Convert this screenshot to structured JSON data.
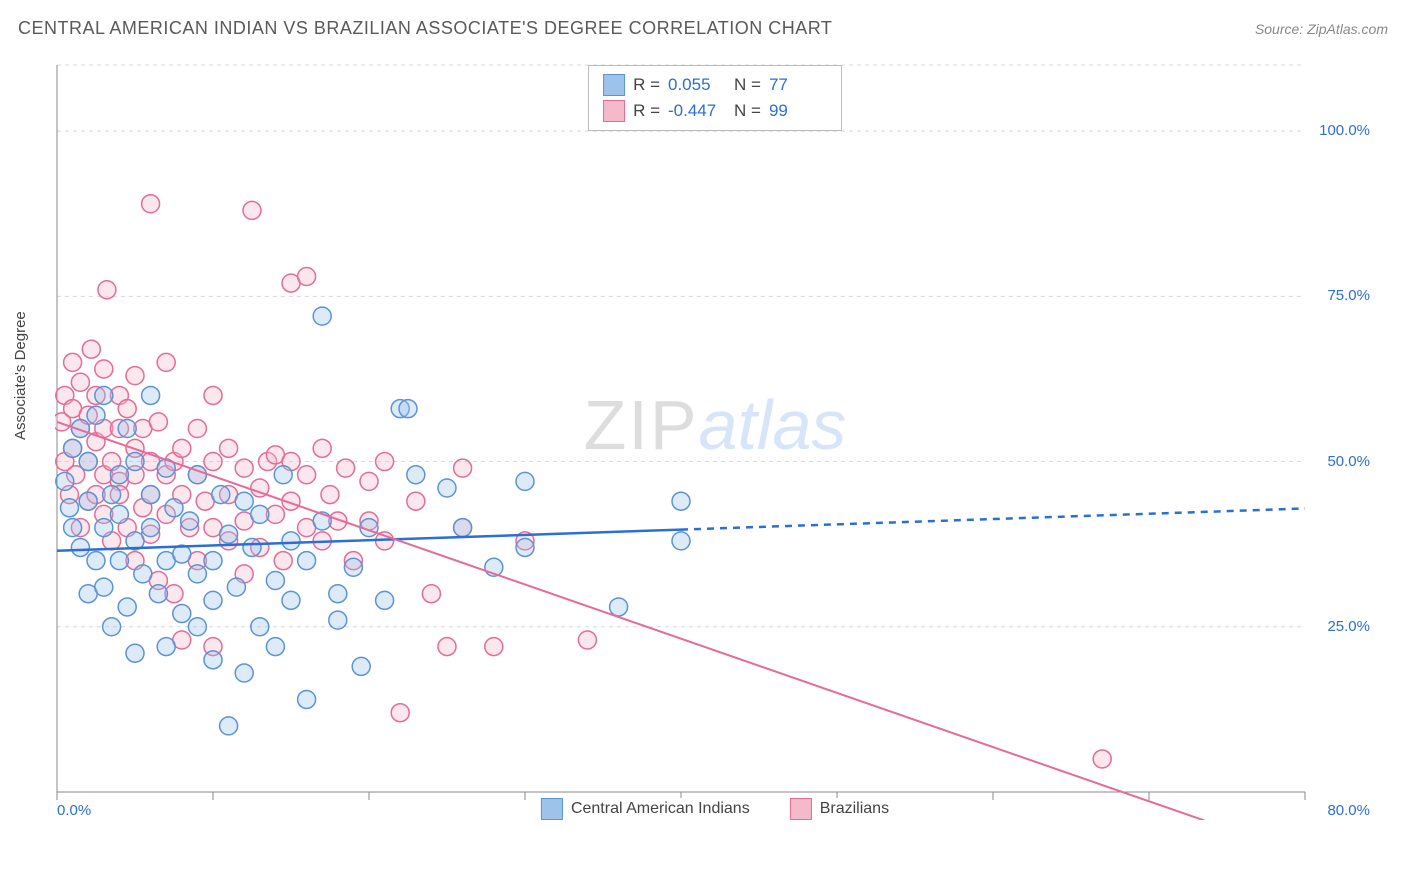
{
  "title": "CENTRAL AMERICAN INDIAN VS BRAZILIAN ASSOCIATE'S DEGREE CORRELATION CHART",
  "source": "Source: ZipAtlas.com",
  "watermark": {
    "zip": "ZIP",
    "atlas": "atlas"
  },
  "y_axis_label": "Associate's Degree",
  "chart": {
    "type": "scatter",
    "background_color": "#ffffff",
    "grid_color": "#d8d8d8",
    "axis_color": "#888888",
    "xlim": [
      0,
      80
    ],
    "ylim": [
      0,
      110
    ],
    "x_ticks": [
      0,
      10,
      20,
      30,
      40,
      50,
      60,
      70,
      80
    ],
    "x_tick_labels": {
      "0": "0.0%",
      "80": "80.0%"
    },
    "y_gridlines": [
      25,
      50,
      75,
      100,
      110
    ],
    "y_tick_labels": {
      "25": "25.0%",
      "50": "50.0%",
      "75": "75.0%",
      "100": "100.0%"
    },
    "marker_radius": 9,
    "marker_fill_opacity": 0.35,
    "marker_stroke_width": 1.5,
    "series": [
      {
        "name": "Central American Indians",
        "color_fill": "#9ec3ea",
        "color_stroke": "#5b94d6",
        "trend": {
          "slope": 0.08,
          "intercept": 36.5,
          "x_solid_max": 40,
          "line_color": "#2a6fd6",
          "line_width": 2.5
        },
        "stats": {
          "R": "0.055",
          "N": "77"
        },
        "points": [
          [
            0.5,
            47
          ],
          [
            0.8,
            43
          ],
          [
            1,
            52
          ],
          [
            1,
            40
          ],
          [
            1.5,
            37
          ],
          [
            1.5,
            55
          ],
          [
            2,
            44
          ],
          [
            2,
            30
          ],
          [
            2,
            50
          ],
          [
            2.5,
            57
          ],
          [
            2.5,
            35
          ],
          [
            3,
            60
          ],
          [
            3,
            40
          ],
          [
            3,
            31
          ],
          [
            3.5,
            45
          ],
          [
            3.5,
            25
          ],
          [
            4,
            48
          ],
          [
            4,
            42
          ],
          [
            4,
            35
          ],
          [
            4.5,
            55
          ],
          [
            4.5,
            28
          ],
          [
            5,
            38
          ],
          [
            5,
            50
          ],
          [
            5,
            21
          ],
          [
            5.5,
            33
          ],
          [
            6,
            45
          ],
          [
            6,
            60
          ],
          [
            6,
            40
          ],
          [
            6.5,
            30
          ],
          [
            7,
            35
          ],
          [
            7,
            49
          ],
          [
            7,
            22
          ],
          [
            7.5,
            43
          ],
          [
            8,
            36
          ],
          [
            8,
            27
          ],
          [
            8.5,
            41
          ],
          [
            9,
            33
          ],
          [
            9,
            25
          ],
          [
            9,
            48
          ],
          [
            10,
            35
          ],
          [
            10,
            29
          ],
          [
            10,
            20
          ],
          [
            10.5,
            45
          ],
          [
            11,
            39
          ],
          [
            11,
            10
          ],
          [
            11.5,
            31
          ],
          [
            12,
            44
          ],
          [
            12,
            18
          ],
          [
            12.5,
            37
          ],
          [
            13,
            25
          ],
          [
            13,
            42
          ],
          [
            14,
            32
          ],
          [
            14,
            22
          ],
          [
            14.5,
            48
          ],
          [
            15,
            38
          ],
          [
            15,
            29
          ],
          [
            16,
            35
          ],
          [
            16,
            14
          ],
          [
            17,
            41
          ],
          [
            17,
            72
          ],
          [
            18,
            30
          ],
          [
            18,
            26
          ],
          [
            19,
            34
          ],
          [
            19.5,
            19
          ],
          [
            20,
            40
          ],
          [
            21,
            29
          ],
          [
            22,
            58
          ],
          [
            22.5,
            58
          ],
          [
            23,
            48
          ],
          [
            25,
            46
          ],
          [
            26,
            40
          ],
          [
            28,
            34
          ],
          [
            30,
            47
          ],
          [
            30,
            37
          ],
          [
            36,
            28
          ],
          [
            40,
            38
          ],
          [
            40,
            44
          ]
        ]
      },
      {
        "name": "Brazilians",
        "color_fill": "#f5b9cc",
        "color_stroke": "#e76a97",
        "trend": {
          "slope": -0.82,
          "intercept": 56,
          "x_solid_max": 80,
          "line_color": "#e76a97",
          "line_width": 2
        },
        "stats": {
          "R": "-0.447",
          "N": "99"
        },
        "points": [
          [
            0.3,
            56
          ],
          [
            0.5,
            60
          ],
          [
            0.5,
            50
          ],
          [
            0.8,
            45
          ],
          [
            1,
            58
          ],
          [
            1,
            52
          ],
          [
            1,
            65
          ],
          [
            1.2,
            48
          ],
          [
            1.5,
            55
          ],
          [
            1.5,
            40
          ],
          [
            1.5,
            62
          ],
          [
            2,
            50
          ],
          [
            2,
            57
          ],
          [
            2,
            44
          ],
          [
            2.2,
            67
          ],
          [
            2.5,
            45
          ],
          [
            2.5,
            53
          ],
          [
            2.5,
            60
          ],
          [
            3,
            48
          ],
          [
            3,
            55
          ],
          [
            3,
            42
          ],
          [
            3,
            64
          ],
          [
            3.2,
            76
          ],
          [
            3.5,
            50
          ],
          [
            3.5,
            38
          ],
          [
            4,
            47
          ],
          [
            4,
            55
          ],
          [
            4,
            60
          ],
          [
            4,
            45
          ],
          [
            4.5,
            58
          ],
          [
            4.5,
            40
          ],
          [
            5,
            52
          ],
          [
            5,
            48
          ],
          [
            5,
            35
          ],
          [
            5,
            63
          ],
          [
            5.5,
            55
          ],
          [
            5.5,
            43
          ],
          [
            6,
            50
          ],
          [
            6,
            89
          ],
          [
            6,
            45
          ],
          [
            6,
            39
          ],
          [
            6.5,
            56
          ],
          [
            6.5,
            32
          ],
          [
            7,
            48
          ],
          [
            7,
            65
          ],
          [
            7,
            42
          ],
          [
            7.5,
            50
          ],
          [
            7.5,
            30
          ],
          [
            8,
            45
          ],
          [
            8,
            52
          ],
          [
            8,
            23
          ],
          [
            8.5,
            40
          ],
          [
            9,
            55
          ],
          [
            9,
            48
          ],
          [
            9,
            35
          ],
          [
            9.5,
            44
          ],
          [
            10,
            50
          ],
          [
            10,
            40
          ],
          [
            10,
            60
          ],
          [
            10,
            22
          ],
          [
            11,
            45
          ],
          [
            11,
            38
          ],
          [
            11,
            52
          ],
          [
            12,
            41
          ],
          [
            12,
            33
          ],
          [
            12,
            49
          ],
          [
            12.5,
            88
          ],
          [
            13,
            46
          ],
          [
            13,
            37
          ],
          [
            13.5,
            50
          ],
          [
            14,
            42
          ],
          [
            14,
            51
          ],
          [
            14.5,
            35
          ],
          [
            15,
            77
          ],
          [
            15,
            44
          ],
          [
            15,
            50
          ],
          [
            16,
            40
          ],
          [
            16,
            48
          ],
          [
            16,
            78
          ],
          [
            17,
            38
          ],
          [
            17,
            52
          ],
          [
            17.5,
            45
          ],
          [
            18,
            41
          ],
          [
            18.5,
            49
          ],
          [
            19,
            35
          ],
          [
            20,
            47
          ],
          [
            20,
            41
          ],
          [
            21,
            38
          ],
          [
            21,
            50
          ],
          [
            22,
            12
          ],
          [
            23,
            44
          ],
          [
            24,
            30
          ],
          [
            25,
            22
          ],
          [
            26,
            40
          ],
          [
            26,
            49
          ],
          [
            28,
            22
          ],
          [
            30,
            38
          ],
          [
            34,
            23
          ],
          [
            67,
            5
          ]
        ]
      }
    ]
  },
  "stats_box": {
    "r_label": "R =",
    "n_label": "N ="
  }
}
